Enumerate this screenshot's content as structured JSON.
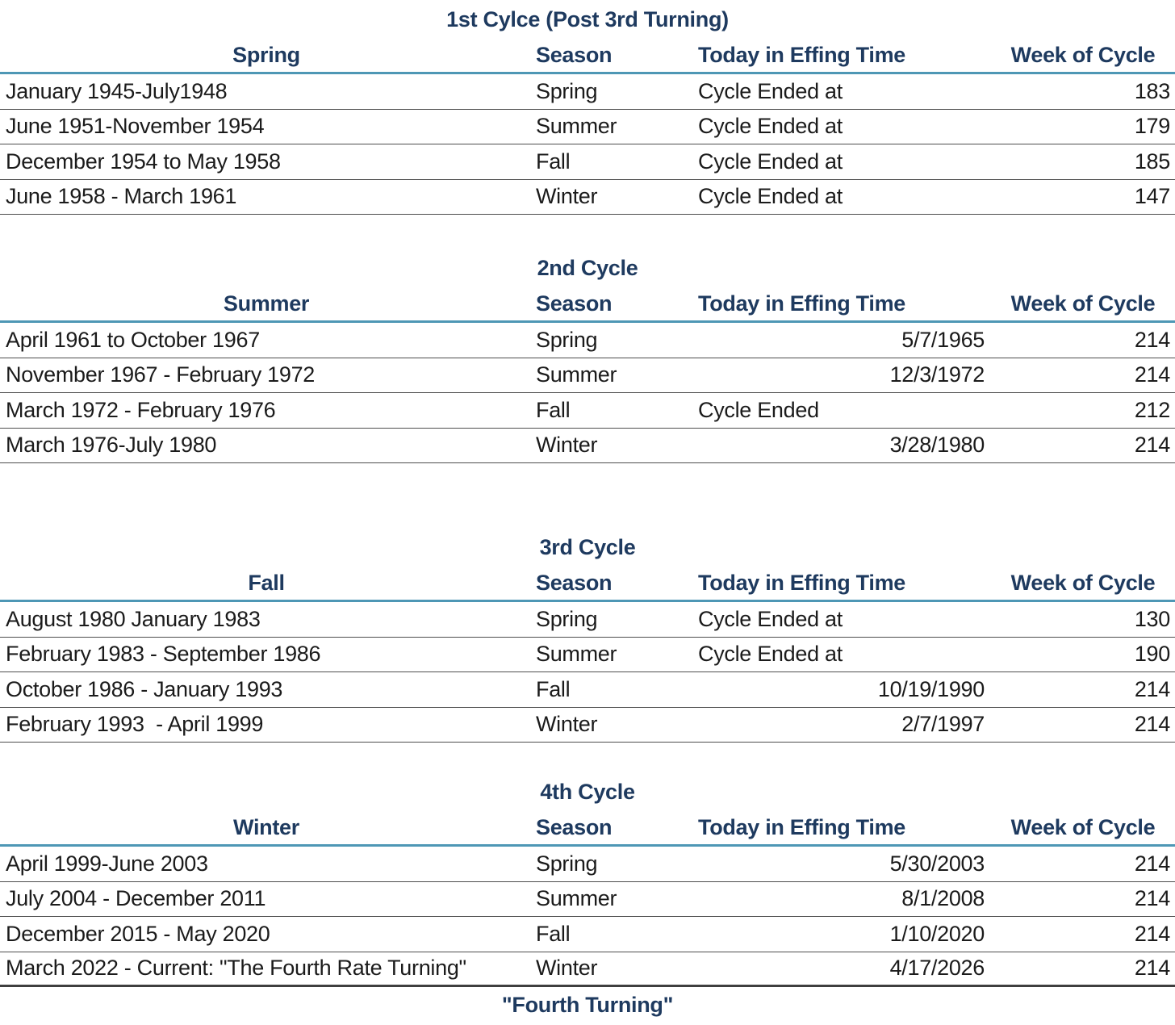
{
  "colors": {
    "heading_navy": "#1e3a5f",
    "header_rule_blue": "#4e97b5",
    "row_line_gray": "#4e4e4e",
    "body_text": "#1b1b1b",
    "background": "#ffffff"
  },
  "sections": [
    {
      "title": "1st Cylce (Post 3rd Turning)",
      "headers": {
        "period": "Spring",
        "season": "Season",
        "effing": "Today in Effing Time",
        "week": "Week of Cycle"
      },
      "rows": [
        {
          "period": "January 1945-July1948",
          "season": "Spring",
          "effing_text": "Cycle Ended at",
          "effing_date": "",
          "week": "183"
        },
        {
          "period": "June 1951-November 1954",
          "season": "Summer",
          "effing_text": "Cycle Ended at",
          "effing_date": "",
          "week": "179"
        },
        {
          "period": "December 1954 to May 1958",
          "season": "Fall",
          "effing_text": "Cycle Ended at",
          "effing_date": "",
          "week": "185"
        },
        {
          "period": "June 1958 - March 1961",
          "season": "Winter",
          "effing_text": "Cycle Ended at",
          "effing_date": "",
          "week": "147"
        }
      ]
    },
    {
      "title": "2nd Cycle",
      "headers": {
        "period": "Summer",
        "season": "Season",
        "effing": "Today in Effing Time",
        "week": "Week of Cycle"
      },
      "rows": [
        {
          "period": "April 1961 to October 1967",
          "season": "Spring",
          "effing_text": "",
          "effing_date": "5/7/1965",
          "week": "214"
        },
        {
          "period": "November 1967 - February 1972",
          "season": "Summer",
          "effing_text": "",
          "effing_date": "12/3/1972",
          "week": "214"
        },
        {
          "period": "March 1972 - February 1976",
          "season": "Fall",
          "effing_text": "Cycle Ended",
          "effing_date": "",
          "week": "212"
        },
        {
          "period": "March 1976-July 1980",
          "season": "Winter",
          "effing_text": "",
          "effing_date": "3/28/1980",
          "week": "214"
        }
      ]
    },
    {
      "title": "3rd Cycle",
      "headers": {
        "period": "Fall",
        "season": "Season",
        "effing": "Today in Effing Time",
        "week": "Week of Cycle"
      },
      "rows": [
        {
          "period": "August 1980 January 1983",
          "season": "Spring",
          "effing_text": "Cycle Ended at",
          "effing_date": "",
          "week": "130"
        },
        {
          "period": "February 1983 - September 1986",
          "season": "Summer",
          "effing_text": "Cycle Ended at",
          "effing_date": "",
          "week": "190"
        },
        {
          "period": "October 1986 - January 1993",
          "season": "Fall",
          "effing_text": "",
          "effing_date": "10/19/1990",
          "week": "214"
        },
        {
          "period": "February 1993  - April 1999",
          "season": "Winter",
          "effing_text": "",
          "effing_date": "2/7/1997",
          "week": "214"
        }
      ]
    },
    {
      "title": "4th Cycle",
      "headers": {
        "period": "Winter",
        "season": "Season",
        "effing": "Today in Effing Time",
        "week": "Week of Cycle"
      },
      "rows": [
        {
          "period": "April 1999-June 2003",
          "season": "Spring",
          "effing_text": "",
          "effing_date": "5/30/2003",
          "week": "214"
        },
        {
          "period": "July 2004 - December 2011",
          "season": "Summer",
          "effing_text": "",
          "effing_date": "8/1/2008",
          "week": "214"
        },
        {
          "period": "December 2015 - May 2020",
          "season": "Fall",
          "effing_text": "",
          "effing_date": "1/10/2020",
          "week": "214"
        },
        {
          "period": "March 2022 - Current: \"The Fourth Rate Turning\"",
          "season": "Winter",
          "effing_text": "",
          "effing_date": "4/17/2026",
          "week": "214"
        }
      ]
    }
  ],
  "footer": "\"Fourth Turning\""
}
